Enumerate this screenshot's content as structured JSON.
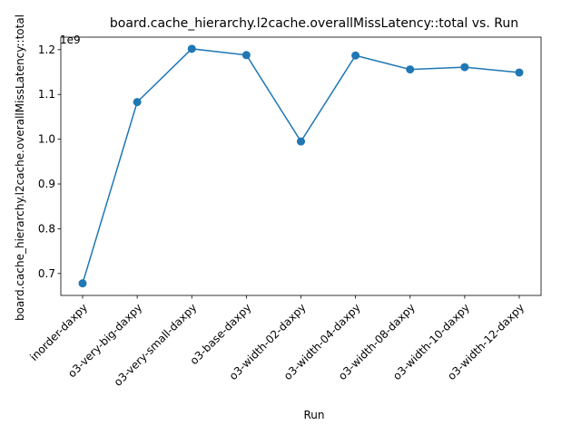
{
  "chart_data": {
    "type": "line",
    "title": "board.cache_hierarchy.l2cache.overallMissLatency::total vs. Run",
    "xlabel": "Run",
    "ylabel": "board.cache_hierarchy.l2cache.overallMissLatency::total",
    "y_offset_label": "1e9",
    "y_scale": 1000000000,
    "categories": [
      "inorder-daxpy",
      "o3-very-big-daxpy",
      "o3-very-small-daxpy",
      "o3-base-daxpy",
      "o3-width-02-daxpy",
      "o3-width-04-daxpy",
      "o3-width-08-daxpy",
      "o3-width-10-daxpy",
      "o3-width-12-daxpy"
    ],
    "values": [
      678000000,
      1083000000,
      1202000000,
      1188000000,
      995000000,
      1187000000,
      1156000000,
      1161000000,
      1149000000
    ],
    "yticks": [
      0.7,
      0.8,
      0.9,
      1.0,
      1.1,
      1.2
    ],
    "ytick_labels": [
      "0.7",
      "0.8",
      "0.9",
      "1.0",
      "1.1",
      "1.2"
    ],
    "ylim": [
      0.651,
      1.228
    ],
    "grid": false,
    "color": "#1f77b4",
    "marker": "circle"
  }
}
